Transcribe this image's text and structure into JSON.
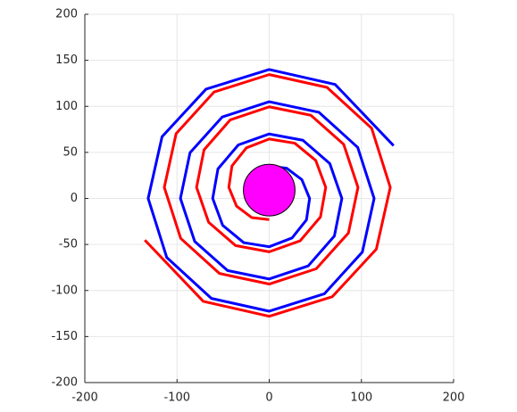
{
  "chart_data": {
    "type": "line",
    "xlim": [
      -200,
      200
    ],
    "ylim": [
      -200,
      200
    ],
    "xticks": [
      -200,
      -100,
      0,
      100,
      200
    ],
    "yticks": [
      -200,
      -150,
      -100,
      -50,
      0,
      50,
      100,
      150,
      200
    ],
    "grid": true,
    "series": [
      {
        "color": "#0000ff",
        "x": [
          0,
          19,
          35.4,
          43.8,
          40.4,
          24.8,
          0,
          -27.7,
          -50.5,
          -61.3,
          -55.6,
          -33.5,
          0,
          36.5,
          65.7,
          78.8,
          70.7,
          42.3,
          0,
          -45.2,
          -80.8,
          -96.3,
          -85.9,
          -51,
          0,
          54,
          96,
          113.8,
          101,
          59.8,
          0,
          -62.7,
          -111.1,
          -131.3,
          -116.2,
          -68.5,
          0,
          71.5,
          134.9
        ],
        "values": [
          35,
          32.8,
          20.4,
          0,
          -23.3,
          -42.9,
          -52.5,
          -48,
          -29.2,
          0,
          32.1,
          58.1,
          70,
          63.2,
          37.9,
          0,
          -40.8,
          -73.3,
          -87.5,
          -78.3,
          -46.7,
          0,
          49.6,
          88.4,
          105,
          93.5,
          55.4,
          0,
          -58.3,
          -103.6,
          -122.5,
          -108.6,
          -64.2,
          0,
          67.1,
          118.7,
          140,
          123.8,
          57.3
        ]
      },
      {
        "color": "#ff0000",
        "x": [
          0,
          -19,
          -35.4,
          -43.8,
          -40.4,
          -24.8,
          0,
          27.7,
          50.5,
          61.3,
          55.6,
          33.5,
          0,
          -36.5,
          -65.7,
          -78.8,
          -70.7,
          -42.3,
          0,
          45.2,
          80.8,
          96.3,
          85.9,
          51,
          0,
          -54,
          -96,
          -113.8,
          -101,
          -59.8,
          0,
          62.7,
          111.1,
          131.3,
          116.2,
          68.5,
          0,
          -71.5,
          -134.9
        ],
        "values": [
          -23,
          -20.8,
          -8.4,
          12,
          35.3,
          54.9,
          64.5,
          60,
          41.2,
          12,
          -20.1,
          -46.1,
          -58,
          -51.2,
          -25.9,
          12,
          52.8,
          85.3,
          99.5,
          90.3,
          58.7,
          12,
          -37.6,
          -76.4,
          -93,
          -81.5,
          -43.4,
          12,
          70.3,
          115.6,
          134.5,
          120.6,
          76.2,
          12,
          -55.1,
          -106.7,
          -128,
          -111.8,
          -45.3
        ]
      }
    ],
    "circle": {
      "center": [
        0,
        9
      ],
      "radius": 28,
      "color": "#ff00ff"
    }
  }
}
